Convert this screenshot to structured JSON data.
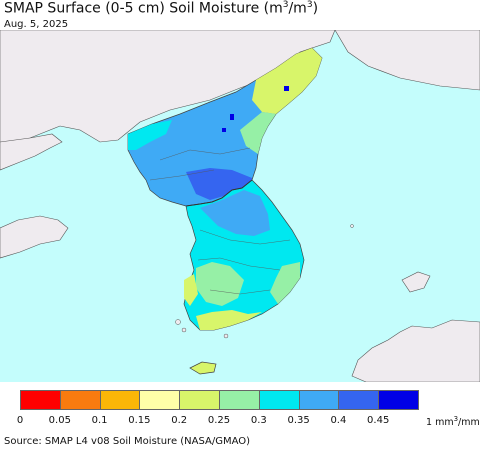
{
  "title": {
    "main": "SMAP Surface (0-5 cm) Soil Moisture (m",
    "sup1": "3",
    "mid": "/m",
    "sup2": "3",
    "close": ")"
  },
  "date": "Aug. 5, 2025",
  "legend": {
    "bins": [
      {
        "color": "#ff0000"
      },
      {
        "color": "#f97b0f"
      },
      {
        "color": "#fbb608"
      },
      {
        "color": "#ffffa8"
      },
      {
        "color": "#d8f56a"
      },
      {
        "color": "#96f0a6"
      },
      {
        "color": "#00e8f0"
      },
      {
        "color": "#3faaf5"
      },
      {
        "color": "#3565f0"
      },
      {
        "color": "#0000e6"
      }
    ],
    "ticks": [
      "0",
      "0.05",
      "0.1",
      "0.15",
      "0.2",
      "0.25",
      "0.3",
      "0.35",
      "0.4",
      "0.45"
    ],
    "unit_text": "1 mm",
    "unit_sup1": "3",
    "unit_mid": "/mm",
    "unit_sup2": "3"
  },
  "source": "Source: SMAP L4 v08 Soil Moisture (NASA/GMAO)",
  "colors": {
    "ocean": "#c4fdfc",
    "land_gray": "#efebef",
    "border": "#333333"
  }
}
